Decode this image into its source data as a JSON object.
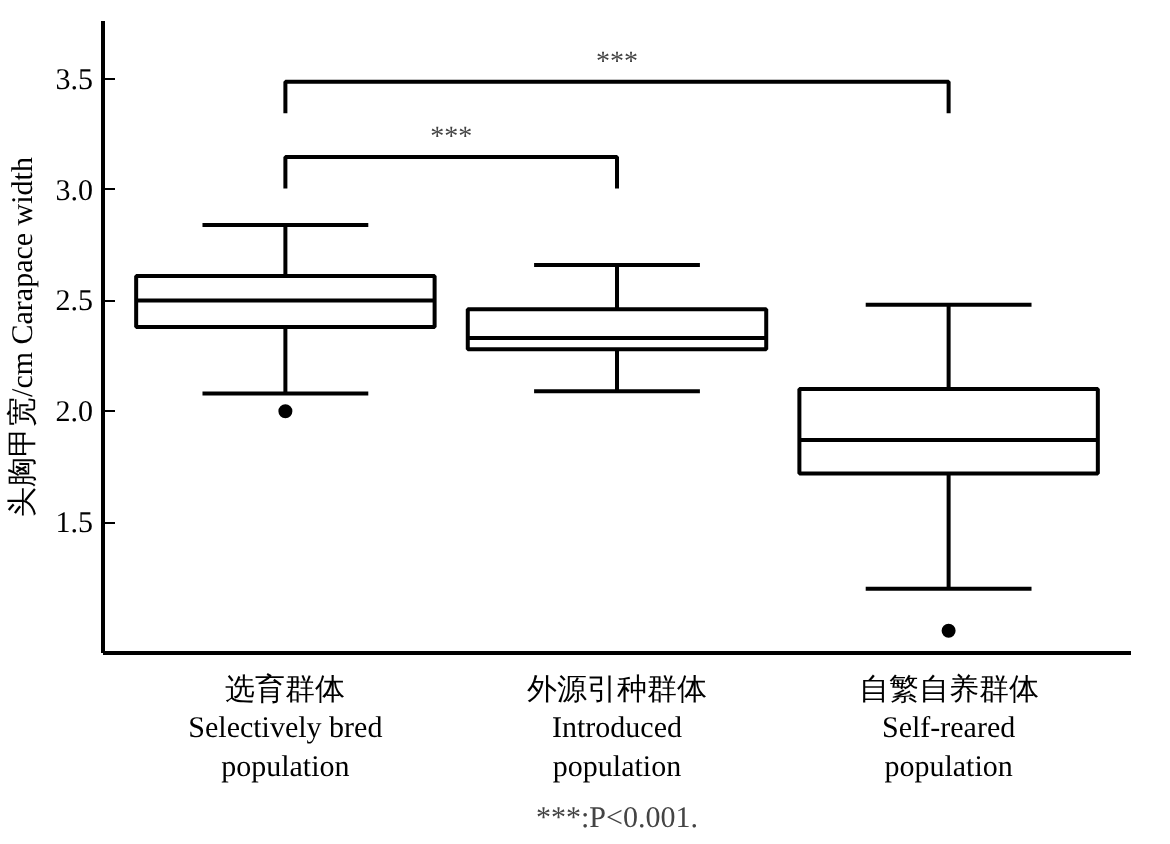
{
  "chart_data": {
    "type": "box",
    "ylabel": "头胸甲宽/cm Carapace width",
    "categories": [
      "选育群体\nSelectively bred\npopulation",
      "外源引种群体\nIntroduced\npopulation",
      "自繁自养群体\nSelf-reared\npopulation"
    ],
    "boxes": [
      {
        "low": 2.08,
        "q1": 2.38,
        "median": 2.5,
        "q3": 2.61,
        "high": 2.84,
        "outliers": [
          2.0
        ]
      },
      {
        "low": 2.09,
        "q1": 2.28,
        "median": 2.33,
        "q3": 2.46,
        "high": 2.66
      },
      {
        "low": 1.2,
        "q1": 1.72,
        "median": 1.87,
        "q3": 2.1,
        "high": 2.48,
        "outliers": [
          1.01
        ]
      }
    ],
    "ylim": [
      0.91,
      3.76
    ],
    "yticks": [
      1.5,
      {
        "value": 2,
        "label": "2.0"
      },
      2.5,
      {
        "value": 3,
        "label": "3.0"
      },
      3.5
    ],
    "grid": false,
    "annotations": [
      "***",
      "***",
      "***:P<0.001."
    ]
  }
}
